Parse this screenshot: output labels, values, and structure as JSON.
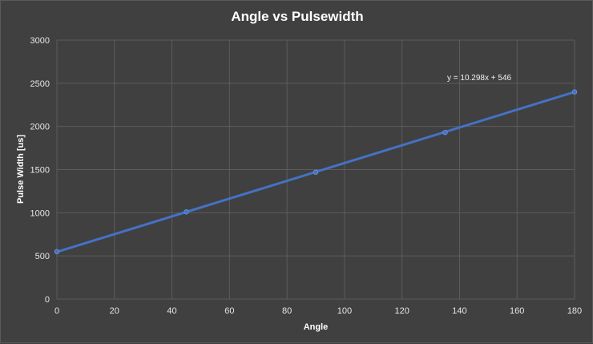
{
  "chart_data": {
    "type": "scatter",
    "title": "Angle vs Pulsewidth",
    "xlabel": "Angle",
    "ylabel": "Pulse Width [us]",
    "xlim": [
      0,
      180
    ],
    "ylim": [
      0,
      3000
    ],
    "x_ticks": [
      "0",
      "20",
      "40",
      "60",
      "80",
      "100",
      "120",
      "140",
      "160",
      "180"
    ],
    "y_ticks": [
      "0",
      "500",
      "1000",
      "1500",
      "2000",
      "2500",
      "3000"
    ],
    "grid": true,
    "series": [
      {
        "x": [
          0,
          45,
          90,
          135,
          180
        ],
        "y": [
          550,
          1010,
          1470,
          1930,
          2400
        ]
      }
    ],
    "trendline": {
      "slope": 10.298,
      "intercept": 546,
      "label": "y = 10.298x + 546"
    },
    "colors": {
      "background": "#404040",
      "grid": "#5c5c5c",
      "series": "#4472c4"
    }
  }
}
